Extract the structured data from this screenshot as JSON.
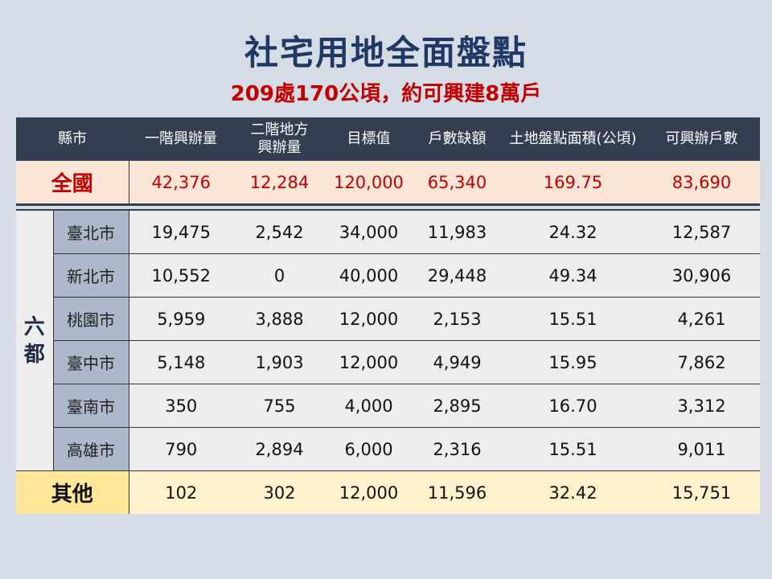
{
  "title": "社宅用地全面盤點",
  "subtitle": "209處170公頃，約可興建8萬戶",
  "headers": [
    "縣市",
    "一階興辦量",
    "二階地方\n興辦量",
    "目標值",
    "戶數缺額",
    "土地盤點面積(公頃)",
    "可興辦戶數"
  ],
  "national": {
    "label": "全國",
    "values": [
      "42,376",
      "12,284",
      "120,000",
      "65,340",
      "169.75",
      "83,690"
    ]
  },
  "six_label": "六都",
  "cities": [
    {
      "name": "臺北市",
      "values": [
        "19,475",
        "2,542",
        "34,000",
        "11,983",
        "24.32",
        "12,587"
      ]
    },
    {
      "name": "新北市",
      "values": [
        "10,552",
        "0",
        "40,000",
        "29,448",
        "49.34",
        "30,906"
      ]
    },
    {
      "name": "桃園市",
      "values": [
        "5,959",
        "3,888",
        "12,000",
        "2,153",
        "15.51",
        "4,261"
      ]
    },
    {
      "name": "臺中市",
      "values": [
        "5,148",
        "1,903",
        "12,000",
        "4,949",
        "15.95",
        "7,862"
      ]
    },
    {
      "name": "臺南市",
      "values": [
        "350",
        "755",
        "4,000",
        "2,895",
        "16.70",
        "3,312"
      ]
    },
    {
      "name": "高雄市",
      "values": [
        "790",
        "2,894",
        "6,000",
        "2,316",
        "15.51",
        "9,011"
      ]
    }
  ],
  "other": {
    "label": "其他",
    "values": [
      "102",
      "302",
      "12,000",
      "11,596",
      "32.42",
      "15,751"
    ]
  }
}
